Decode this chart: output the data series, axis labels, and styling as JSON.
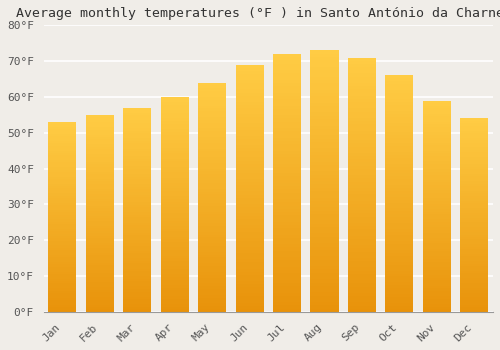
{
  "title": "Average monthly temperatures (°F ) in Santo António da Charneca",
  "months": [
    "Jan",
    "Feb",
    "Mar",
    "Apr",
    "May",
    "Jun",
    "Jul",
    "Aug",
    "Sep",
    "Oct",
    "Nov",
    "Dec"
  ],
  "values": [
    53,
    55,
    57,
    60,
    64,
    69,
    72,
    73,
    71,
    66,
    59,
    54
  ],
  "bar_color_bottom": "#E8920A",
  "bar_color_top": "#FFCC44",
  "ylim": [
    0,
    80
  ],
  "yticks": [
    0,
    10,
    20,
    30,
    40,
    50,
    60,
    70,
    80
  ],
  "ytick_labels": [
    "0°F",
    "10°F",
    "20°F",
    "30°F",
    "40°F",
    "50°F",
    "60°F",
    "70°F",
    "80°F"
  ],
  "background_color": "#f0ede8",
  "grid_color": "#ffffff",
  "title_fontsize": 9.5,
  "tick_fontsize": 8,
  "font_family": "monospace",
  "bar_width": 0.75,
  "figsize": [
    5.0,
    3.5
  ],
  "dpi": 100
}
